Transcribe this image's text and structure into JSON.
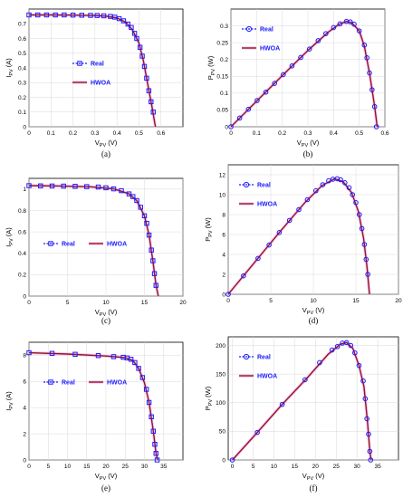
{
  "colors": {
    "real": "#1a1aff",
    "hwoa": "#8b1a1a",
    "glow": "#ff99ff"
  },
  "chart_data": [
    {
      "id": "a",
      "type": "line",
      "caption": "(a)",
      "kind": "iv",
      "xlabel_main": "V",
      "xlabel_sub": "PV",
      "xlabel_unit": "(V)",
      "ylabel_main": "I",
      "ylabel_sub": "PV",
      "ylabel_unit": "(A)",
      "xlim": [
        0,
        0.7
      ],
      "ylim": [
        0,
        0.8
      ],
      "xticks": [
        0,
        0.1,
        0.2,
        0.3,
        0.4,
        0.5,
        0.6
      ],
      "yticks": [
        0,
        0.1,
        0.2,
        0.3,
        0.4,
        0.5,
        0.6,
        0.7
      ],
      "legend": {
        "position": "center-left",
        "real": "Real",
        "hwoa": "HWOA"
      },
      "series_real": [
        [
          0.0,
          0.76
        ],
        [
          0.04,
          0.76
        ],
        [
          0.08,
          0.76
        ],
        [
          0.12,
          0.76
        ],
        [
          0.16,
          0.76
        ],
        [
          0.2,
          0.759
        ],
        [
          0.24,
          0.758
        ],
        [
          0.28,
          0.757
        ],
        [
          0.31,
          0.756
        ],
        [
          0.34,
          0.754
        ],
        [
          0.37,
          0.75
        ],
        [
          0.39,
          0.745
        ],
        [
          0.41,
          0.735
        ],
        [
          0.43,
          0.72
        ],
        [
          0.45,
          0.698
        ],
        [
          0.465,
          0.675
        ],
        [
          0.48,
          0.635
        ],
        [
          0.49,
          0.6
        ],
        [
          0.505,
          0.54
        ],
        [
          0.515,
          0.48
        ],
        [
          0.525,
          0.41
        ],
        [
          0.535,
          0.33
        ],
        [
          0.545,
          0.245
        ],
        [
          0.555,
          0.17
        ],
        [
          0.565,
          0.1
        ]
      ],
      "series_hwoa": [
        [
          0.0,
          0.76
        ],
        [
          0.1,
          0.76
        ],
        [
          0.2,
          0.759
        ],
        [
          0.3,
          0.756
        ],
        [
          0.35,
          0.752
        ],
        [
          0.4,
          0.74
        ],
        [
          0.44,
          0.71
        ],
        [
          0.47,
          0.66
        ],
        [
          0.5,
          0.57
        ],
        [
          0.52,
          0.45
        ],
        [
          0.54,
          0.29
        ],
        [
          0.56,
          0.13
        ],
        [
          0.575,
          0.0
        ]
      ]
    },
    {
      "id": "b",
      "type": "line",
      "caption": "(b)",
      "kind": "pv",
      "xlabel_main": "V",
      "xlabel_sub": "PV",
      "xlabel_unit": "(V)",
      "ylabel_main": "P",
      "ylabel_sub": "PV",
      "ylabel_unit": "(W)",
      "xlim": [
        0,
        0.6
      ],
      "ylim": [
        0,
        0.35
      ],
      "xticks": [
        0,
        0.1,
        0.2,
        0.3,
        0.4,
        0.5,
        0.6
      ],
      "yticks": [
        0,
        0.05,
        0.1,
        0.15,
        0.2,
        0.25,
        0.3
      ],
      "legend": {
        "position": "top-left",
        "real": "Real",
        "hwoa": "HWOA"
      },
      "series_real": [
        [
          0.0,
          0.0
        ],
        [
          0.034,
          0.026
        ],
        [
          0.068,
          0.052
        ],
        [
          0.102,
          0.078
        ],
        [
          0.136,
          0.103
        ],
        [
          0.17,
          0.129
        ],
        [
          0.204,
          0.155
        ],
        [
          0.238,
          0.181
        ],
        [
          0.272,
          0.206
        ],
        [
          0.306,
          0.231
        ],
        [
          0.34,
          0.256
        ],
        [
          0.37,
          0.277
        ],
        [
          0.4,
          0.295
        ],
        [
          0.425,
          0.306
        ],
        [
          0.45,
          0.313
        ],
        [
          0.465,
          0.312
        ],
        [
          0.48,
          0.305
        ],
        [
          0.5,
          0.285
        ],
        [
          0.52,
          0.243
        ],
        [
          0.53,
          0.205
        ],
        [
          0.54,
          0.16
        ],
        [
          0.55,
          0.11
        ],
        [
          0.56,
          0.06
        ],
        [
          0.567,
          0.0
        ]
      ],
      "series_hwoa": [
        [
          0.0,
          0.0
        ],
        [
          0.1,
          0.076
        ],
        [
          0.2,
          0.152
        ],
        [
          0.3,
          0.227
        ],
        [
          0.38,
          0.282
        ],
        [
          0.42,
          0.304
        ],
        [
          0.45,
          0.313
        ],
        [
          0.47,
          0.31
        ],
        [
          0.5,
          0.285
        ],
        [
          0.52,
          0.24
        ],
        [
          0.54,
          0.16
        ],
        [
          0.56,
          0.06
        ],
        [
          0.57,
          0.0
        ]
      ]
    },
    {
      "id": "c",
      "type": "line",
      "caption": "(c)",
      "kind": "iv",
      "xlabel_main": "V",
      "xlabel_sub": "PV",
      "xlabel_unit": "(V)",
      "ylabel_main": "I",
      "ylabel_sub": "PV",
      "ylabel_unit": "(A)",
      "xlim": [
        0,
        20
      ],
      "ylim": [
        0,
        1.1
      ],
      "xticks": [
        0,
        5,
        10,
        15,
        20
      ],
      "yticks": [
        0,
        0.2,
        0.4,
        0.6,
        0.8,
        1
      ],
      "legend": {
        "position": "center-left",
        "real": "Real",
        "hwoa": "HWOA"
      },
      "series_real": [
        [
          0.0,
          1.032
        ],
        [
          1.5,
          1.03
        ],
        [
          3,
          1.029
        ],
        [
          4.5,
          1.028
        ],
        [
          6,
          1.026
        ],
        [
          7.5,
          1.023
        ],
        [
          9,
          1.019
        ],
        [
          10,
          1.012
        ],
        [
          11,
          1.002
        ],
        [
          12,
          0.985
        ],
        [
          13,
          0.955
        ],
        [
          13.5,
          0.93
        ],
        [
          14,
          0.893
        ],
        [
          14.5,
          0.83
        ],
        [
          15,
          0.75
        ],
        [
          15.3,
          0.68
        ],
        [
          15.6,
          0.57
        ],
        [
          15.9,
          0.43
        ],
        [
          16.1,
          0.33
        ],
        [
          16.3,
          0.21
        ],
        [
          16.5,
          0.1
        ]
      ],
      "series_hwoa": [
        [
          0.0,
          1.032
        ],
        [
          4,
          1.029
        ],
        [
          8,
          1.021
        ],
        [
          11,
          1.003
        ],
        [
          13,
          0.955
        ],
        [
          14,
          0.893
        ],
        [
          15,
          0.75
        ],
        [
          15.6,
          0.57
        ],
        [
          16.1,
          0.33
        ],
        [
          16.5,
          0.1
        ],
        [
          16.8,
          0.0
        ]
      ]
    },
    {
      "id": "d",
      "type": "line",
      "caption": "(d)",
      "kind": "pv",
      "xlabel_main": "V",
      "xlabel_sub": "PV",
      "xlabel_unit": "(V)",
      "ylabel_main": "P",
      "ylabel_sub": "PV",
      "ylabel_unit": "(W)",
      "xlim": [
        0,
        20
      ],
      "ylim": [
        0,
        13
      ],
      "xticks": [
        0,
        5,
        10,
        15,
        20
      ],
      "yticks": [
        0,
        2,
        4,
        6,
        8,
        10,
        12
      ],
      "legend": {
        "position": "top-left",
        "real": "Real",
        "hwoa": "HWOA"
      },
      "series_real": [
        [
          0.0,
          0.0
        ],
        [
          1.8,
          1.85
        ],
        [
          3.5,
          3.6
        ],
        [
          4.8,
          4.95
        ],
        [
          6.0,
          6.2
        ],
        [
          7.2,
          7.42
        ],
        [
          8.3,
          8.5
        ],
        [
          9.3,
          9.5
        ],
        [
          10.3,
          10.4
        ],
        [
          11.1,
          11.0
        ],
        [
          11.8,
          11.4
        ],
        [
          12.3,
          11.55
        ],
        [
          12.8,
          11.6
        ],
        [
          13.2,
          11.5
        ],
        [
          13.7,
          11.2
        ],
        [
          14.2,
          10.7
        ],
        [
          14.6,
          10.0
        ],
        [
          15.0,
          9.2
        ],
        [
          15.4,
          8.0
        ],
        [
          15.7,
          6.6
        ],
        [
          16.0,
          5.0
        ],
        [
          16.2,
          3.5
        ],
        [
          16.4,
          2.0
        ]
      ],
      "series_hwoa": [
        [
          0.0,
          0.0
        ],
        [
          3,
          3.1
        ],
        [
          6,
          6.2
        ],
        [
          9,
          9.2
        ],
        [
          11,
          10.9
        ],
        [
          12.5,
          11.6
        ],
        [
          13.5,
          11.3
        ],
        [
          14.5,
          10.2
        ],
        [
          15.3,
          8.3
        ],
        [
          15.9,
          5.6
        ],
        [
          16.3,
          2.8
        ],
        [
          16.6,
          0.0
        ]
      ]
    },
    {
      "id": "e",
      "type": "line",
      "caption": "(e)",
      "kind": "iv",
      "xlabel_main": "V",
      "xlabel_sub": "PV",
      "xlabel_unit": "(V)",
      "ylabel_main": "I",
      "ylabel_sub": "PV",
      "ylabel_unit": "(A)",
      "xlim": [
        0,
        40
      ],
      "ylim": [
        0,
        9
      ],
      "xticks": [
        0,
        5,
        10,
        15,
        20,
        25,
        30,
        35
      ],
      "yticks": [
        0,
        2,
        4,
        6,
        8
      ],
      "legend": {
        "position": "center-left",
        "real": "Real",
        "hwoa": "HWOA"
      },
      "series_real": [
        [
          0.0,
          8.2
        ],
        [
          6,
          8.15
        ],
        [
          12,
          8.08
        ],
        [
          18,
          7.98
        ],
        [
          22,
          7.9
        ],
        [
          24.5,
          7.85
        ],
        [
          25.5,
          7.8
        ],
        [
          26.5,
          7.7
        ],
        [
          27.5,
          7.45
        ],
        [
          28.5,
          7.0
        ],
        [
          29.5,
          6.3
        ],
        [
          30.5,
          5.4
        ],
        [
          31.2,
          4.4
        ],
        [
          31.8,
          3.3
        ],
        [
          32.3,
          2.2
        ],
        [
          32.7,
          1.2
        ],
        [
          33.0,
          0.5
        ],
        [
          33.3,
          0.0
        ]
      ],
      "series_hwoa": [
        [
          0.0,
          8.2
        ],
        [
          10,
          8.1
        ],
        [
          20,
          7.95
        ],
        [
          25,
          7.83
        ],
        [
          27,
          7.6
        ],
        [
          28.5,
          7.0
        ],
        [
          30,
          5.9
        ],
        [
          31.2,
          4.4
        ],
        [
          32.3,
          2.2
        ],
        [
          33,
          0.5
        ],
        [
          33.4,
          0.0
        ]
      ]
    },
    {
      "id": "f",
      "type": "line",
      "caption": "(f)",
      "kind": "pv",
      "xlabel_main": "V",
      "xlabel_sub": "PV",
      "xlabel_unit": "(V)",
      "ylabel_main": "P",
      "ylabel_sub": "PV",
      "ylabel_unit": "(W)",
      "xlim": [
        -1,
        40
      ],
      "ylim": [
        0,
        215
      ],
      "xticks": [
        0,
        5,
        10,
        15,
        20,
        25,
        30,
        35
      ],
      "yticks": [
        0,
        50,
        100,
        150,
        200
      ],
      "legend": {
        "position": "top-left",
        "real": "Real",
        "hwoa": "HWOA"
      },
      "series_real": [
        [
          0.0,
          0.0
        ],
        [
          6,
          48
        ],
        [
          12,
          97
        ],
        [
          17.5,
          140
        ],
        [
          21,
          170
        ],
        [
          24,
          192
        ],
        [
          25.3,
          198
        ],
        [
          26.5,
          204
        ],
        [
          27.5,
          205
        ],
        [
          28.5,
          200
        ],
        [
          29.5,
          187
        ],
        [
          30.5,
          165
        ],
        [
          31.5,
          138
        ],
        [
          32.0,
          107
        ],
        [
          32.4,
          72
        ],
        [
          32.8,
          45
        ],
        [
          33.1,
          15
        ],
        [
          33.3,
          0
        ]
      ],
      "series_hwoa": [
        [
          0.0,
          0.0
        ],
        [
          6,
          48
        ],
        [
          12,
          97
        ],
        [
          18,
          143
        ],
        [
          23,
          184
        ],
        [
          26,
          202
        ],
        [
          27.5,
          205
        ],
        [
          29,
          195
        ],
        [
          30.5,
          165
        ],
        [
          31.7,
          128
        ],
        [
          32.5,
          70
        ],
        [
          33.1,
          15
        ],
        [
          33.4,
          0
        ]
      ]
    }
  ]
}
